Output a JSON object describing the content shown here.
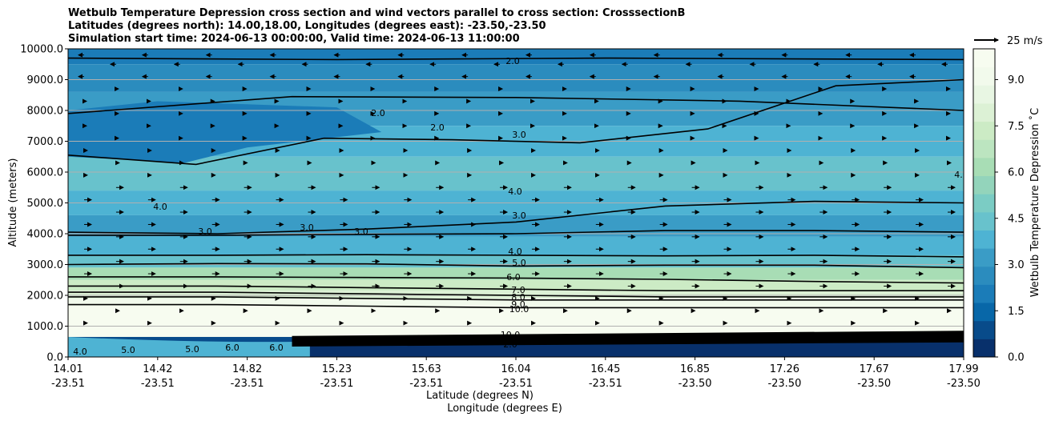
{
  "chart_data": {
    "type": "heatmap",
    "title": [
      "Wetbulb Temperature Depression cross section and wind vectors parallel to cross section: CrosssectionB",
      "Latitudes (degrees north): 14.00,18.00, Longitudes (degrees east): -23.50,-23.50",
      "Simulation start time: 2024-06-13 00:00:00, Valid time: 2024-06-13 11:00:00"
    ],
    "ylabel": "Altitude (meters)",
    "xlabel": [
      "Latitude (degrees N)",
      "Longitude (degrees E)"
    ],
    "ylim": [
      0,
      10000
    ],
    "yticks": [
      "0.0",
      "1000.0",
      "2000.0",
      "3000.0",
      "4000.0",
      "5000.0",
      "6000.0",
      "7000.0",
      "8000.0",
      "9000.0",
      "10000.0"
    ],
    "xticks": [
      {
        "lat": "14.01",
        "lon": "-23.51"
      },
      {
        "lat": "14.42",
        "lon": "-23.51"
      },
      {
        "lat": "14.82",
        "lon": "-23.51"
      },
      {
        "lat": "15.23",
        "lon": "-23.51"
      },
      {
        "lat": "15.63",
        "lon": "-23.51"
      },
      {
        "lat": "16.04",
        "lon": "-23.51"
      },
      {
        "lat": "16.45",
        "lon": "-23.51"
      },
      {
        "lat": "16.85",
        "lon": "-23.50"
      },
      {
        "lat": "17.26",
        "lon": "-23.50"
      },
      {
        "lat": "17.67",
        "lon": "-23.50"
      },
      {
        "lat": "17.99",
        "lon": "-23.50"
      }
    ],
    "colorbar": {
      "label": "Wetbulb Temperature Depression ˚C",
      "range": [
        0,
        10
      ],
      "ticks": [
        "0.0",
        "1.5",
        "3.0",
        "4.5",
        "6.0",
        "7.5",
        "9.0"
      ],
      "colors": [
        "#08306b",
        "#084b8a",
        "#0867a8",
        "#1b7cb8",
        "#2b8cbe",
        "#3a9cc6",
        "#4eb3d3",
        "#68c2cc",
        "#7bccc4",
        "#93d4bb",
        "#a8ddb5",
        "#bce5c0",
        "#ccebc5",
        "#dcf1d5",
        "#e8f6e3",
        "#f2faec",
        "#f7fcf0"
      ]
    },
    "quiver_key": "25 m/s",
    "contour_labels": [
      "2.0",
      "2.0",
      "2.0",
      "3.0",
      "4.0",
      "3.0",
      "3.0",
      "3.0",
      "3.0",
      "4.0",
      "4.0",
      "5.0",
      "6.0",
      "7.0",
      "8.0",
      "9.0",
      "10.0",
      "10.0",
      "2.0",
      "4.0",
      "5.0",
      "6.0",
      "5.0",
      "6.0",
      "4.0"
    ],
    "contours": [
      {
        "level": 2.0,
        "alt_m": [
          7900,
          8450,
          8420,
          8300,
          8000
        ]
      },
      {
        "level": 3.0,
        "alt_m": [
          6550,
          6250,
          7100,
          7050,
          6950,
          7400,
          8800,
          9000
        ]
      },
      {
        "level": 4.0,
        "alt_m": [
          4050,
          4000,
          4150,
          4380,
          4900,
          5050,
          5000
        ]
      },
      {
        "level": 3.0,
        "alt_m": [
          3950,
          3950,
          3980,
          4000,
          4100,
          4100,
          4050
        ]
      },
      {
        "level": 4.0,
        "alt_m": [
          3300,
          3300,
          3320,
          3300,
          3280,
          3300,
          3250
        ]
      },
      {
        "level": 5.0,
        "alt_m": [
          3000,
          3030,
          3020,
          2950,
          2980,
          2980,
          2900
        ]
      },
      {
        "level": 6.0,
        "alt_m": [
          2600,
          2600,
          2580,
          2560,
          2520,
          2450,
          2400
        ]
      },
      {
        "level": 7.0,
        "alt_m": [
          2300,
          2300,
          2250,
          2200,
          2150,
          2150,
          2150
        ]
      },
      {
        "level": 8.0,
        "alt_m": [
          2100,
          2100,
          2050,
          2000,
          1950,
          1950,
          1950
        ]
      },
      {
        "level": 9.0,
        "alt_m": [
          1950,
          1950,
          1900,
          1850,
          1850,
          1850,
          1850
        ]
      },
      {
        "level": 10.0,
        "alt_m": [
          1700,
          1700,
          1650,
          1600,
          1600,
          1600,
          1600
        ]
      }
    ]
  }
}
